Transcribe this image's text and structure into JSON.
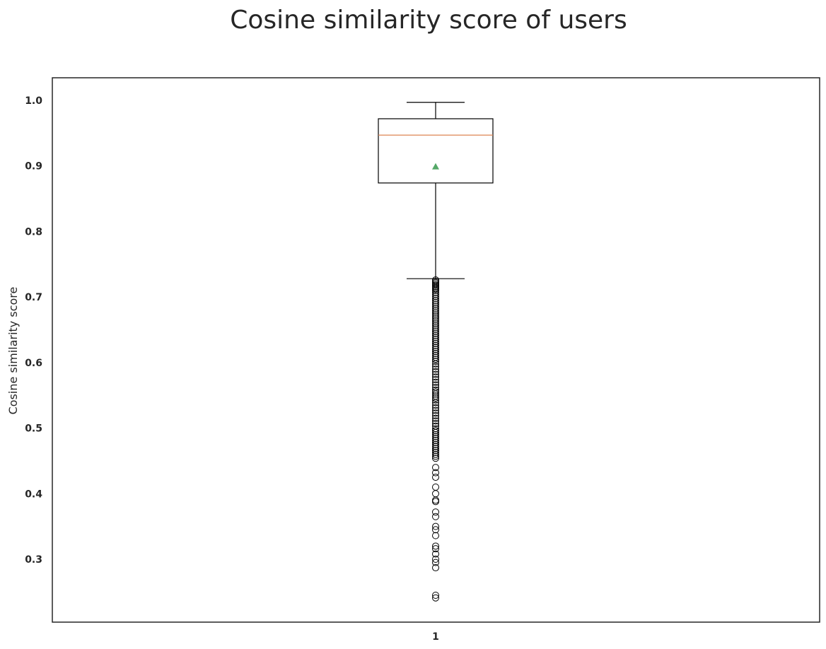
{
  "chart_data": {
    "type": "box",
    "title": "Cosine similarity score of users",
    "xlabel": "",
    "ylabel": "Cosine similarity score",
    "categories": [
      "1"
    ],
    "ylim": [
      0.2,
      1.035
    ],
    "yticks": [
      "0.3",
      "0.4",
      "0.5",
      "0.6",
      "0.7",
      "0.8",
      "0.9",
      "1.0"
    ],
    "grid": false,
    "box": {
      "whisker_low": 0.728,
      "q1": 0.874,
      "median": 0.947,
      "q3": 0.972,
      "whisker_high": 0.997,
      "mean": 0.899
    },
    "outliers": [
      0.726,
      0.724,
      0.722,
      0.72,
      0.718,
      0.716,
      0.714,
      0.712,
      0.71,
      0.707,
      0.704,
      0.701,
      0.698,
      0.695,
      0.692,
      0.689,
      0.686,
      0.683,
      0.68,
      0.677,
      0.674,
      0.671,
      0.668,
      0.665,
      0.662,
      0.659,
      0.656,
      0.653,
      0.65,
      0.647,
      0.644,
      0.641,
      0.638,
      0.635,
      0.632,
      0.629,
      0.626,
      0.623,
      0.62,
      0.617,
      0.614,
      0.611,
      0.608,
      0.605,
      0.602,
      0.598,
      0.594,
      0.59,
      0.586,
      0.582,
      0.578,
      0.574,
      0.57,
      0.566,
      0.562,
      0.558,
      0.555,
      0.552,
      0.549,
      0.546,
      0.543,
      0.539,
      0.535,
      0.531,
      0.527,
      0.523,
      0.519,
      0.515,
      0.511,
      0.507,
      0.503,
      0.499,
      0.496,
      0.493,
      0.49,
      0.487,
      0.484,
      0.481,
      0.478,
      0.475,
      0.472,
      0.469,
      0.466,
      0.463,
      0.46,
      0.457,
      0.454,
      0.44,
      0.432,
      0.425,
      0.41,
      0.4,
      0.39,
      0.388,
      0.372,
      0.365,
      0.35,
      0.345,
      0.336,
      0.32,
      0.316,
      0.308,
      0.3,
      0.295,
      0.287,
      0.245,
      0.241
    ],
    "colors": {
      "box": "#000000",
      "median": "#dd8452",
      "mean": "#55a868",
      "outlier": "#000000",
      "axes": "#262626"
    }
  }
}
